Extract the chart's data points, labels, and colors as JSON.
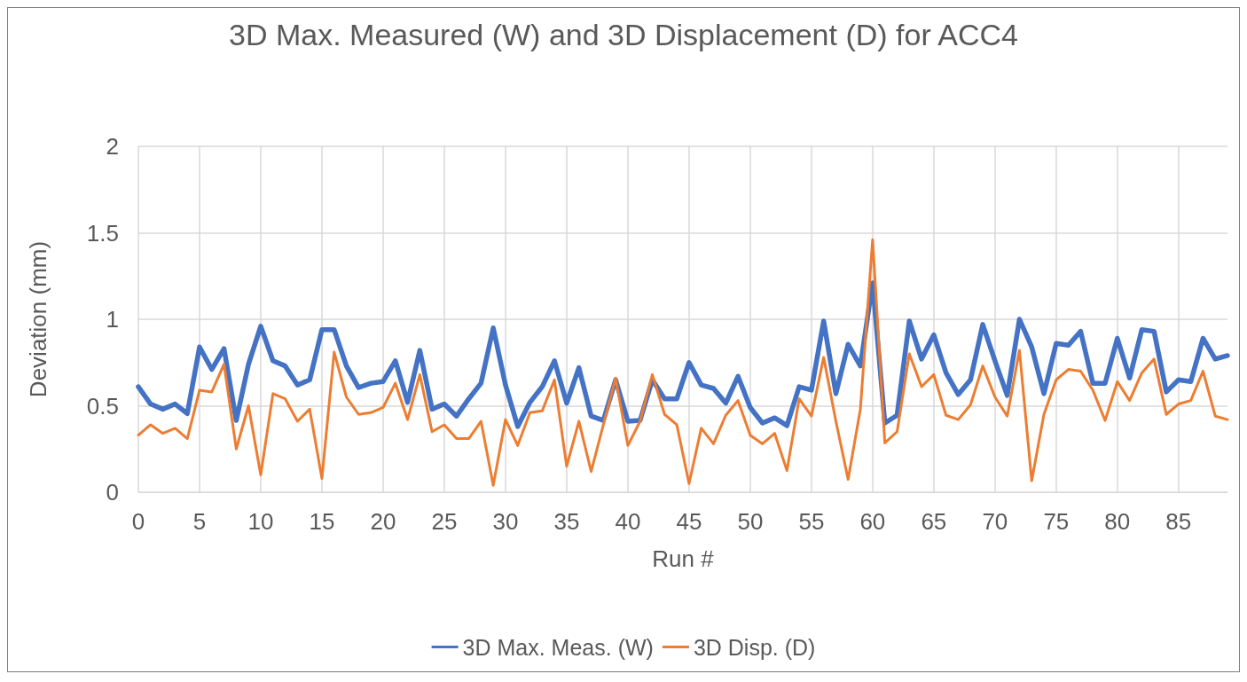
{
  "chart_data": {
    "type": "line",
    "title": "3D Max. Measured (W) and 3D Displacement (D) for ACC4",
    "xlabel": "Run #",
    "ylabel": "Deviation (mm)",
    "x": [
      0,
      1,
      2,
      3,
      4,
      5,
      6,
      7,
      8,
      9,
      10,
      11,
      12,
      13,
      14,
      15,
      16,
      17,
      18,
      19,
      20,
      21,
      22,
      23,
      24,
      25,
      26,
      27,
      28,
      29,
      30,
      31,
      32,
      33,
      34,
      35,
      36,
      37,
      38,
      39,
      40,
      41,
      42,
      43,
      44,
      45,
      46,
      47,
      48,
      49,
      50,
      51,
      52,
      53,
      54,
      55,
      56,
      57,
      58,
      59,
      60,
      61,
      62,
      63,
      64,
      65,
      66,
      67,
      68,
      69,
      70,
      71,
      72,
      73,
      74,
      75,
      76,
      77,
      78,
      79,
      80,
      81,
      82,
      83,
      84,
      85,
      86,
      87,
      88,
      89
    ],
    "xlim": [
      0,
      89
    ],
    "xticks": [
      0,
      5,
      10,
      15,
      20,
      25,
      30,
      35,
      40,
      45,
      50,
      55,
      60,
      65,
      70,
      75,
      80,
      85
    ],
    "ylim": [
      0,
      2
    ],
    "yticks": [
      0,
      0.5,
      1,
      1.5,
      2
    ],
    "grid": true,
    "legend": "bottom",
    "marker": "none",
    "line_style": "solid",
    "series": [
      {
        "name": "3D Max. Meas. (W)",
        "color": "#4472c4",
        "values": [
          0.61,
          0.51,
          0.48,
          0.51,
          0.455,
          0.84,
          0.71,
          0.83,
          0.415,
          0.74,
          0.96,
          0.76,
          0.73,
          0.62,
          0.65,
          0.94,
          0.94,
          0.73,
          0.605,
          0.63,
          0.64,
          0.76,
          0.52,
          0.82,
          0.48,
          0.51,
          0.44,
          0.54,
          0.63,
          0.95,
          0.62,
          0.38,
          0.52,
          0.61,
          0.76,
          0.515,
          0.72,
          0.44,
          0.415,
          0.65,
          0.41,
          0.415,
          0.65,
          0.54,
          0.54,
          0.75,
          0.62,
          0.6,
          0.515,
          0.67,
          0.49,
          0.4,
          0.43,
          0.385,
          0.61,
          0.59,
          0.99,
          0.57,
          0.855,
          0.73,
          1.21,
          0.4,
          0.445,
          0.99,
          0.77,
          0.91,
          0.69,
          0.565,
          0.65,
          0.97,
          0.76,
          0.56,
          1.0,
          0.84,
          0.57,
          0.86,
          0.85,
          0.93,
          0.63,
          0.63,
          0.89,
          0.66,
          0.94,
          0.93,
          0.58,
          0.65,
          0.64,
          0.89,
          0.77,
          0.79
        ]
      },
      {
        "name": "3D Disp. (D)",
        "color": "#ed7d31",
        "values": [
          0.33,
          0.39,
          0.34,
          0.37,
          0.31,
          0.59,
          0.58,
          0.74,
          0.25,
          0.5,
          0.1,
          0.57,
          0.54,
          0.41,
          0.48,
          0.08,
          0.81,
          0.55,
          0.45,
          0.46,
          0.49,
          0.63,
          0.42,
          0.68,
          0.35,
          0.39,
          0.31,
          0.31,
          0.41,
          0.04,
          0.42,
          0.27,
          0.46,
          0.47,
          0.65,
          0.15,
          0.41,
          0.12,
          0.39,
          0.66,
          0.27,
          0.41,
          0.68,
          0.45,
          0.39,
          0.05,
          0.37,
          0.28,
          0.445,
          0.53,
          0.33,
          0.28,
          0.34,
          0.125,
          0.54,
          0.44,
          0.78,
          0.41,
          0.074,
          0.48,
          1.46,
          0.285,
          0.35,
          0.8,
          0.61,
          0.68,
          0.445,
          0.42,
          0.505,
          0.73,
          0.55,
          0.44,
          0.82,
          0.066,
          0.45,
          0.65,
          0.71,
          0.7,
          0.59,
          0.415,
          0.64,
          0.53,
          0.69,
          0.77,
          0.45,
          0.51,
          0.53,
          0.7,
          0.44,
          0.42
        ]
      }
    ]
  }
}
